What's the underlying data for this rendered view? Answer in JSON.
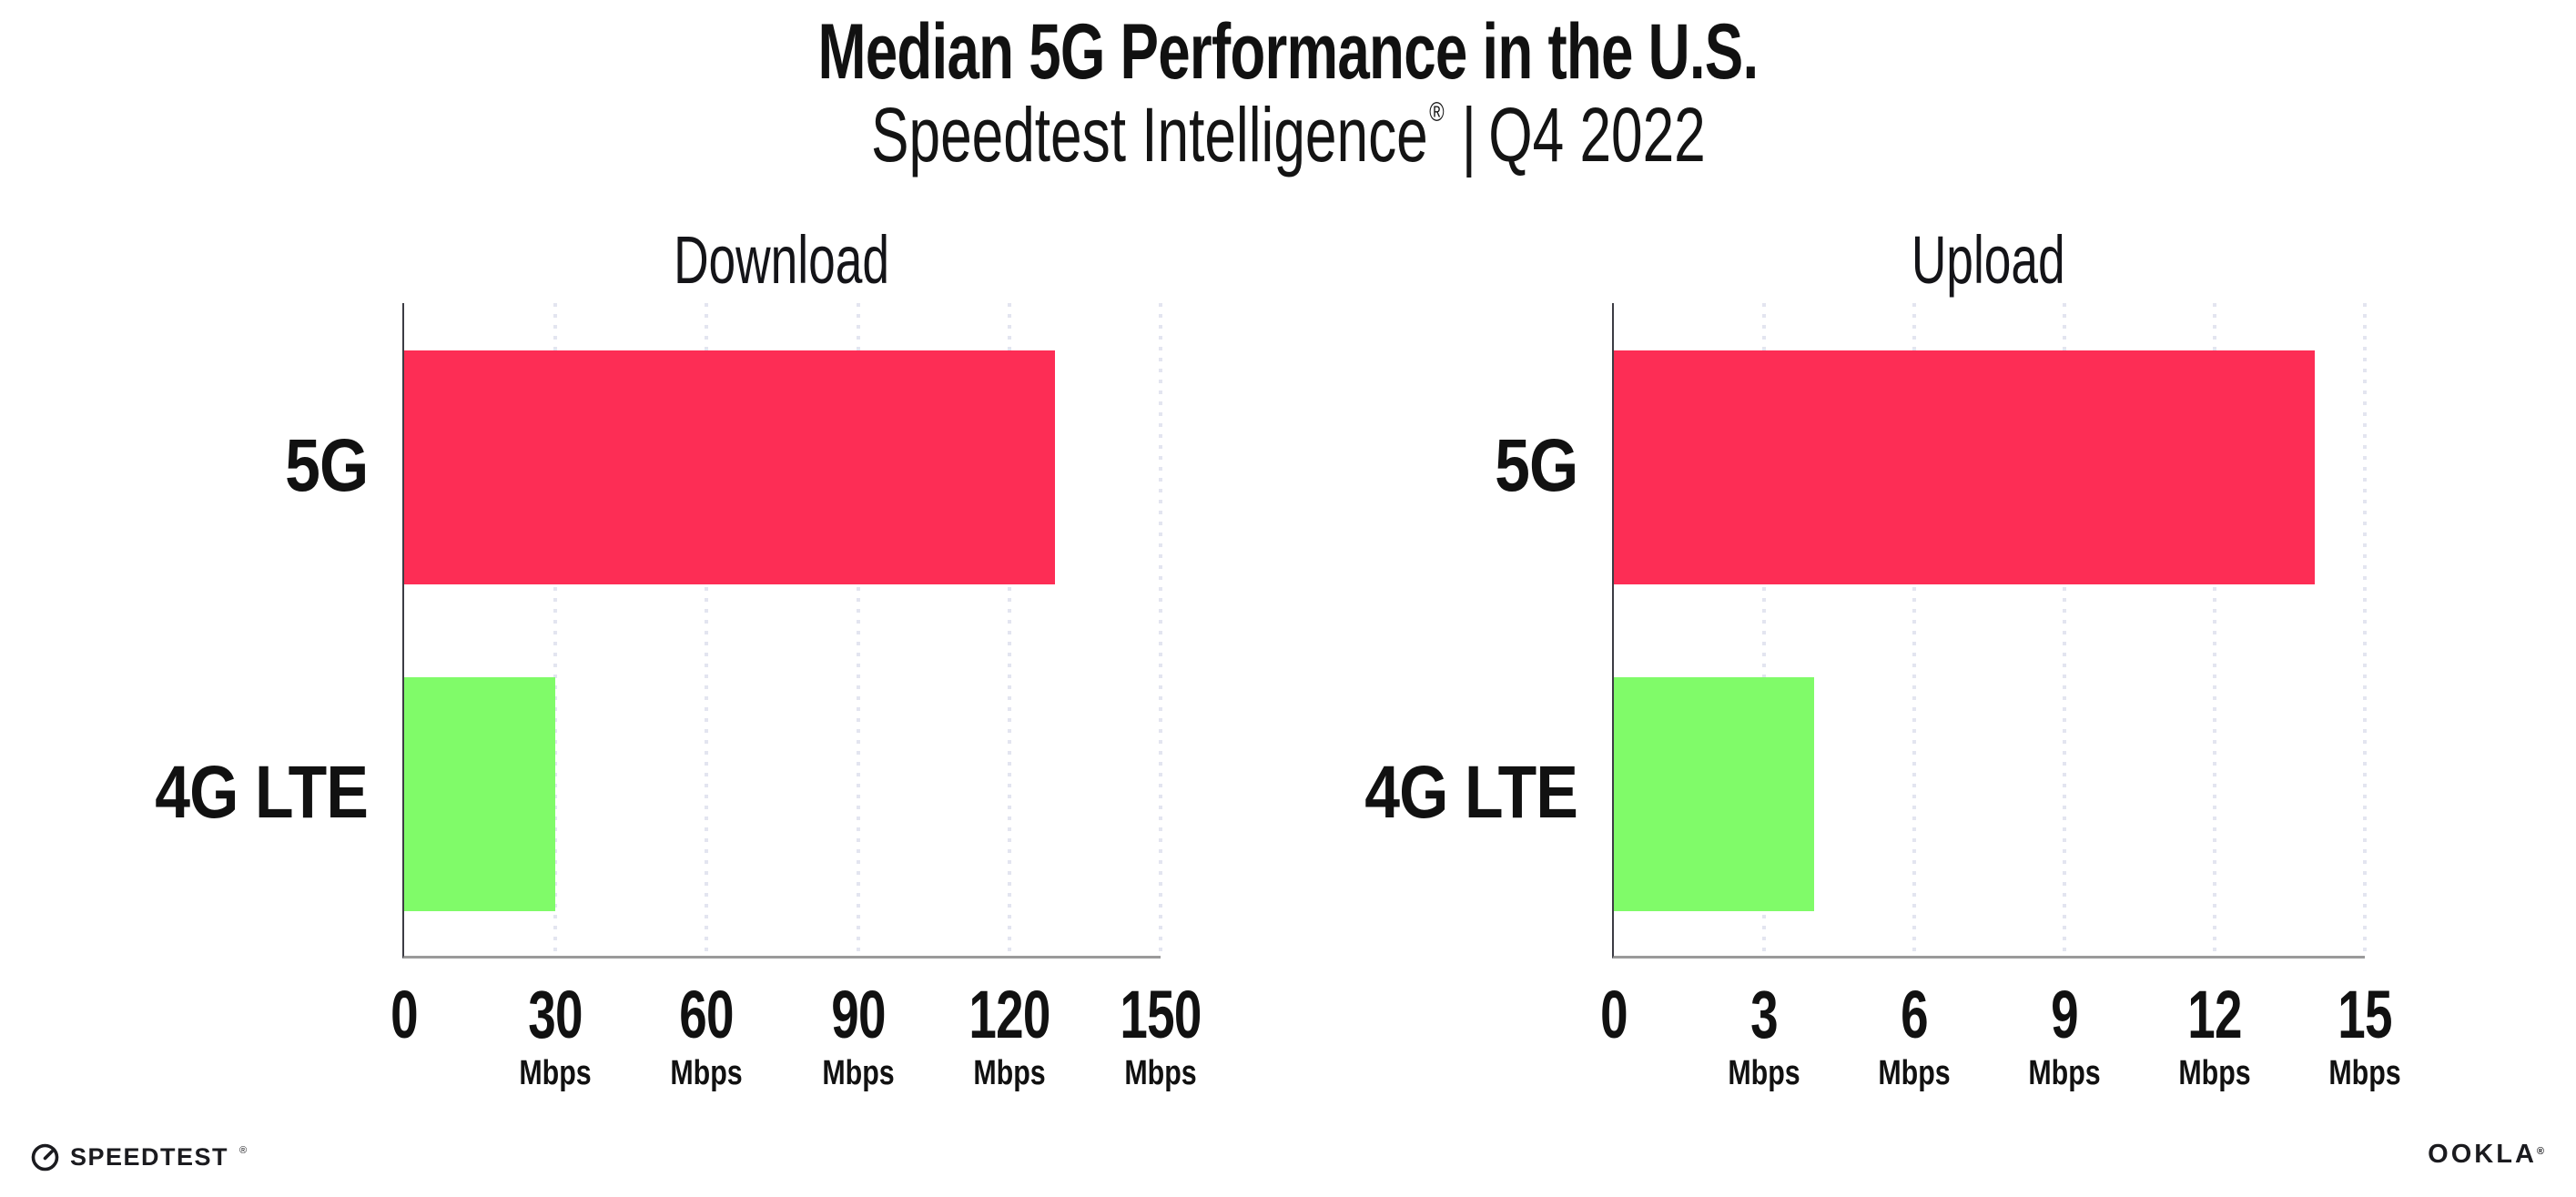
{
  "header": {
    "title": "Median 5G Performance in the U.S.",
    "subtitle": {
      "brand": "Speedtest Intelligence",
      "registered_mark": "®",
      "separator": "|",
      "period": "Q4 2022"
    }
  },
  "chart_data": [
    {
      "type": "bar",
      "orientation": "horizontal",
      "title": "Download",
      "categories": [
        "5G",
        "4G LTE"
      ],
      "values": [
        129,
        30
      ],
      "unit": "Mbps",
      "xlim": [
        0,
        150
      ],
      "xticks": [
        0,
        30,
        60,
        90,
        120,
        150
      ],
      "bar_colors": [
        "#FD2D55",
        "#80FB69"
      ],
      "grid": "vertical-dotted",
      "legend": "none"
    },
    {
      "type": "bar",
      "orientation": "horizontal",
      "title": "Upload",
      "categories": [
        "5G",
        "4G LTE"
      ],
      "values": [
        14,
        4
      ],
      "unit": "Mbps",
      "xlim": [
        0,
        15
      ],
      "xticks": [
        0,
        3,
        6,
        9,
        12,
        15
      ],
      "bar_colors": [
        "#FD2D55",
        "#80FB69"
      ],
      "grid": "vertical-dotted",
      "legend": "none"
    }
  ],
  "footer": {
    "speedtest_wordmark": "SPEEDTEST",
    "speedtest_mark": "®",
    "ookla_wordmark": "OOKLA",
    "ookla_mark": "®"
  },
  "colors": {
    "background": "#FFFFFF",
    "text": "#111111",
    "bar_5g": "#FD2D55",
    "bar_4g_lte": "#80FB69",
    "grid_dots": "#E3E5F0",
    "x_axis": "#9A9A9A",
    "y_axis": "#3C3C44"
  }
}
